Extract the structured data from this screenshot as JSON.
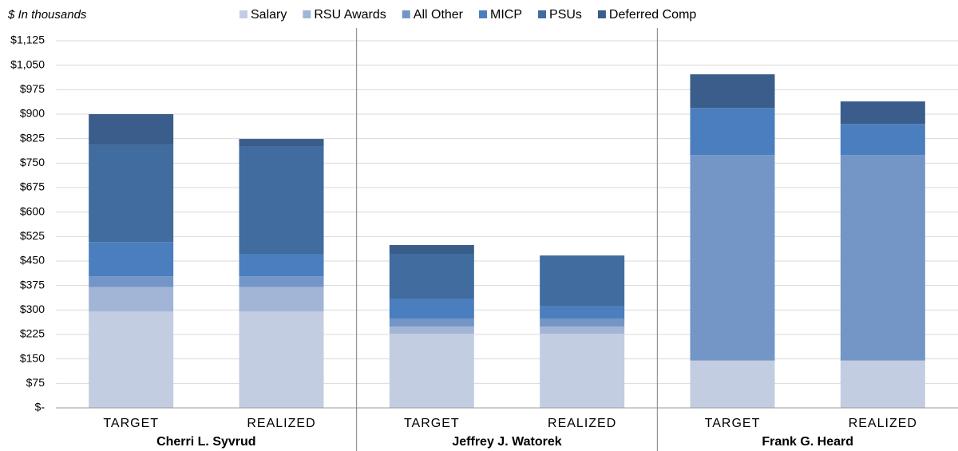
{
  "chart_data": {
    "type": "stacked_bar",
    "y_label": "$ In thousands",
    "categories": [
      "TARGET",
      "REALIZED",
      "TARGET",
      "REALIZED",
      "TARGET",
      "REALIZED"
    ],
    "groups": [
      "Cherri L. Syvrud",
      "Jeffrey J. Watorek",
      "Frank G. Heard"
    ],
    "series": [
      {
        "name": "Salary",
        "color": "#c3cde1",
        "values": [
          295,
          295,
          227,
          227,
          145,
          145
        ]
      },
      {
        "name": "RSU Awards",
        "color": "#a3b5d6",
        "values": [
          75,
          75,
          22,
          22,
          0,
          0
        ]
      },
      {
        "name": "All Other",
        "color": "#7396c7",
        "values": [
          33,
          33,
          25,
          25,
          630,
          630
        ]
      },
      {
        "name": "MICP",
        "color": "#4a7ebe",
        "values": [
          105,
          69,
          59,
          37,
          144,
          95
        ]
      },
      {
        "name": "PSUs",
        "color": "#406ca0",
        "values": [
          297,
          328,
          139,
          156,
          0,
          0
        ]
      },
      {
        "name": "Deferred Comp",
        "color": "#3a5d8b",
        "values": [
          95,
          24,
          27,
          0,
          103,
          69
        ]
      }
    ],
    "ylim": [
      0,
      1125
    ],
    "yticks": [
      {
        "value": 0,
        "label": "$-"
      },
      {
        "value": 75,
        "label": "$75"
      },
      {
        "value": 150,
        "label": "$150"
      },
      {
        "value": 225,
        "label": "$225"
      },
      {
        "value": 300,
        "label": "$300"
      },
      {
        "value": 375,
        "label": "$375"
      },
      {
        "value": 450,
        "label": "$450"
      },
      {
        "value": 525,
        "label": "$525"
      },
      {
        "value": 600,
        "label": "$600"
      },
      {
        "value": 675,
        "label": "$675"
      },
      {
        "value": 750,
        "label": "$750"
      },
      {
        "value": 825,
        "label": "$825"
      },
      {
        "value": 900,
        "label": "$900"
      },
      {
        "value": 975,
        "label": "$975"
      },
      {
        "value": 1050,
        "label": "$1,050"
      },
      {
        "value": 1125,
        "label": "$1,125"
      }
    ],
    "grid": true,
    "legend": "top"
  }
}
